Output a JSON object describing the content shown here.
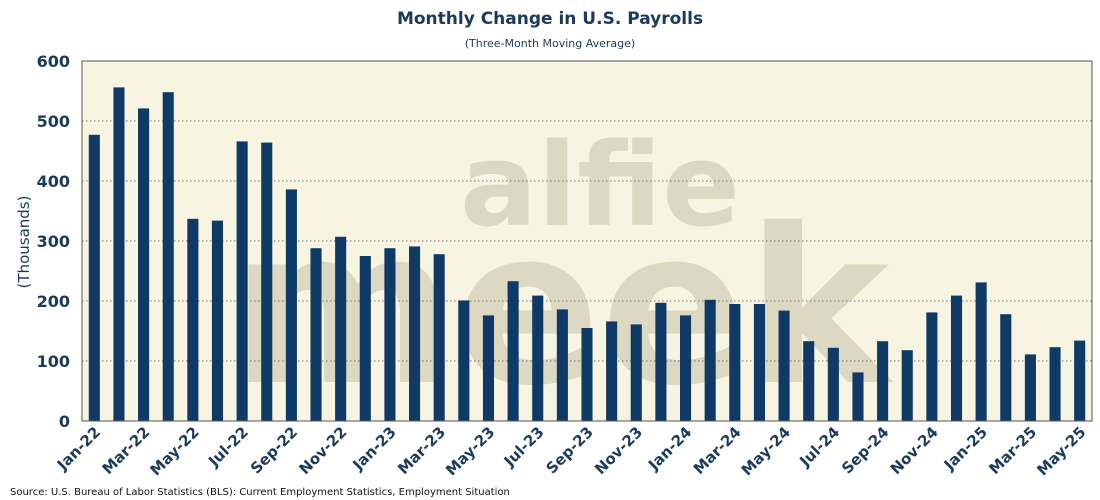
{
  "chart_data": {
    "type": "bar",
    "title": "Monthly Change in U.S. Payrolls",
    "subtitle": "(Three-Month Moving Average)",
    "xlabel": "",
    "ylabel": "(Thousands)",
    "ylim": [
      0,
      600
    ],
    "yticks": [
      "0",
      "100",
      "200",
      "300",
      "400",
      "500",
      "600"
    ],
    "grid": true,
    "categories": [
      "Jan-22",
      "Feb-22",
      "Mar-22",
      "Apr-22",
      "May-22",
      "Jun-22",
      "Jul-22",
      "Aug-22",
      "Sep-22",
      "Oct-22",
      "Nov-22",
      "Dec-22",
      "Jan-23",
      "Feb-23",
      "Mar-23",
      "Apr-23",
      "May-23",
      "Jun-23",
      "Jul-23",
      "Aug-23",
      "Sep-23",
      "Oct-23",
      "Nov-23",
      "Dec-23",
      "Jan-24",
      "Feb-24",
      "Mar-24",
      "Apr-24",
      "May-24",
      "Jun-24",
      "Jul-24",
      "Aug-24",
      "Sep-24",
      "Oct-24",
      "Nov-24",
      "Dec-24",
      "Jan-25",
      "Feb-25",
      "Mar-25",
      "Apr-25",
      "May-25"
    ],
    "xticks": [
      "Jan-22",
      "Mar-22",
      "May-22",
      "Jul-22",
      "Sep-22",
      "Nov-22",
      "Jan-23",
      "Mar-23",
      "May-23",
      "Jul-23",
      "Sep-23",
      "Nov-23",
      "Jan-24",
      "Mar-24",
      "May-24",
      "Jul-24",
      "Sep-24",
      "Nov-24",
      "Jan-25",
      "Mar-25",
      "May-25"
    ],
    "values": [
      477,
      556,
      521,
      548,
      337,
      334,
      466,
      464,
      386,
      288,
      307,
      275,
      288,
      291,
      278,
      201,
      176,
      233,
      209,
      186,
      155,
      166,
      161,
      197,
      176,
      202,
      195,
      195,
      184,
      133,
      122,
      81,
      133,
      118,
      181,
      209,
      231,
      178,
      111,
      123,
      134
    ],
    "colors": {
      "bar": "#0f3a66",
      "plot_bg": "#f8f4e2",
      "grid": "#4a4a4a",
      "text": "#1b3a5c"
    }
  },
  "watermark": {
    "line1": "alfie",
    "line2": "meek"
  },
  "source": "Source: U.S. Bureau of Labor Statistics (BLS): Current Employment Statistics, Employment Situation"
}
